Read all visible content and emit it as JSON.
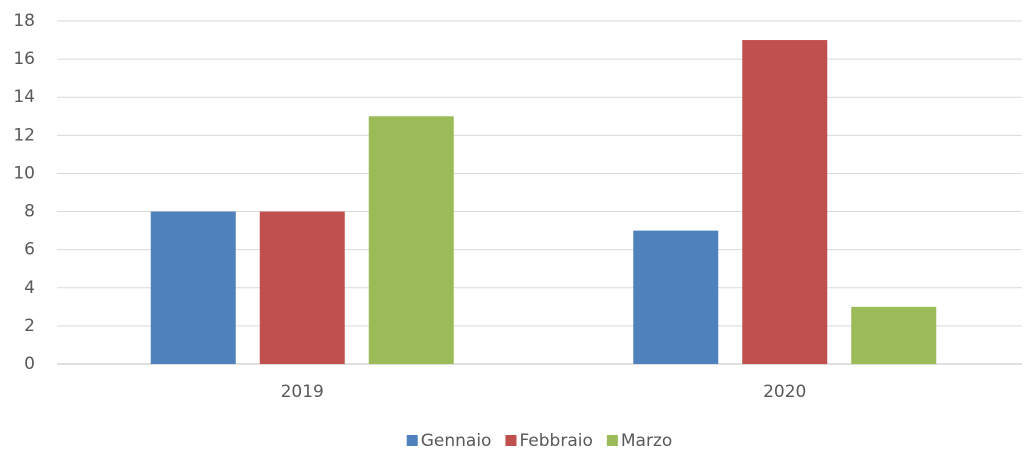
{
  "chart_data": {
    "type": "bar",
    "categories": [
      "2019",
      "2020"
    ],
    "series": [
      {
        "name": "Gennaio",
        "color": "#4f81bd",
        "values": [
          8,
          7
        ]
      },
      {
        "name": "Febbraio",
        "color": "#c0504d",
        "values": [
          8,
          17
        ]
      },
      {
        "name": "Marzo",
        "color": "#9bbb59",
        "values": [
          13,
          3
        ]
      }
    ],
    "ylim": [
      0,
      18
    ],
    "yticks": [
      0,
      2,
      4,
      6,
      8,
      10,
      12,
      14,
      16,
      18
    ],
    "grid": true,
    "legend": "bottom"
  }
}
